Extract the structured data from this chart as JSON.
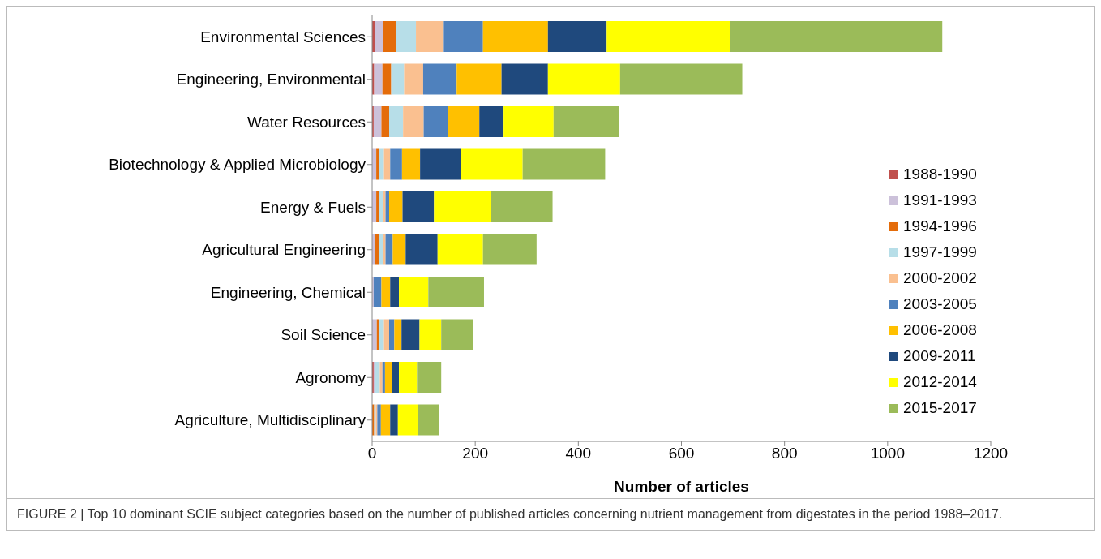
{
  "chart_data": {
    "type": "bar",
    "orientation": "horizontal",
    "stacked": true,
    "xlabel": "Number of articles",
    "categories": [
      "Environmental Sciences",
      "Engineering, Environmental",
      "Water Resources",
      "Biotechnology & Applied Microbiology",
      "Energy & Fuels",
      "Agricultural Engineering",
      "Engineering, Chemical",
      "Soil Science",
      "Agronomy",
      "Agriculture, Multidisciplinary"
    ],
    "series": [
      {
        "name": "1988-1990",
        "color": "#c0504d",
        "values": [
          5,
          4,
          3,
          null,
          null,
          null,
          0,
          null,
          3,
          0
        ]
      },
      {
        "name": "1991-1993",
        "color": "#ccc1da",
        "values": [
          16,
          16,
          15,
          8,
          8,
          6,
          3,
          9,
          3,
          0
        ]
      },
      {
        "name": "1994-1996",
        "color": "#e46c0a",
        "values": [
          25,
          17,
          15,
          6,
          6,
          7,
          0,
          4,
          0,
          4
        ]
      },
      {
        "name": "1997-1999",
        "color": "#b7dee8",
        "values": [
          39,
          25,
          27,
          9,
          7,
          8,
          0,
          10,
          9,
          3
        ]
      },
      {
        "name": "2000-2002",
        "color": "#fac090",
        "values": [
          54,
          37,
          40,
          12,
          5,
          5,
          0,
          10,
          5,
          3
        ]
      },
      {
        "name": "2003-2005",
        "color": "#4f81bd",
        "values": [
          76,
          65,
          47,
          23,
          7,
          14,
          15,
          10,
          5,
          7
        ]
      },
      {
        "name": "2006-2008",
        "color": "#ffc000",
        "values": [
          126,
          87,
          61,
          35,
          26,
          25,
          17,
          14,
          13,
          18
        ]
      },
      {
        "name": "2009-2011",
        "color": "#1f497d",
        "values": [
          114,
          90,
          47,
          80,
          61,
          62,
          17,
          35,
          14,
          15
        ]
      },
      {
        "name": "2012-2014",
        "color": "#ffff00",
        "values": [
          240,
          140,
          97,
          119,
          111,
          88,
          57,
          42,
          35,
          39
        ]
      },
      {
        "name": "2015-2017",
        "color": "#9bbb59",
        "values": [
          411,
          237,
          127,
          160,
          119,
          104,
          108,
          62,
          47,
          41
        ]
      }
    ],
    "xlim": [
      0,
      1200
    ],
    "xticks": [
      0,
      200,
      400,
      600,
      800,
      1000,
      1200
    ],
    "grid": false,
    "legend": "right",
    "annotations": [
      "FIGURE 2 | Top 10 dominant SCIE subject categories based on the number of published articles concerning nutrient management from digestates in the period 1988–2017."
    ]
  }
}
